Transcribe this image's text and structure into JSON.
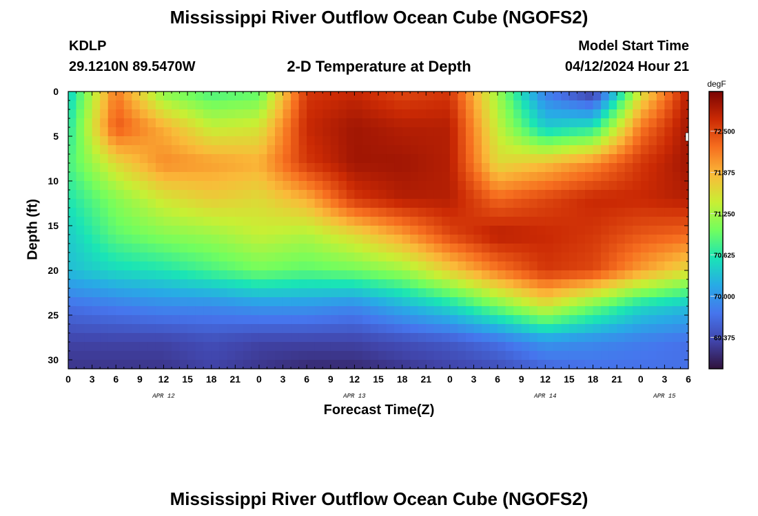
{
  "header": {
    "title": "Mississippi River Outflow Ocean Cube (NGOFS2)",
    "station_id": "KDLP",
    "location": "29.1210N  89.5470W",
    "subtitle": "2-D Temperature at Depth",
    "model_start_label": "Model Start Time",
    "model_start_value": "04/12/2024 Hour 21"
  },
  "footer": {
    "title": "Mississippi River Outflow Ocean Cube (NGOFS2)"
  },
  "chart_data": {
    "type": "heatmap",
    "title": "2-D Temperature at Depth",
    "xlabel": "Forecast Time(Z)",
    "ylabel": "Depth (ft)",
    "x_ticks": [
      "0",
      "3",
      "6",
      "9",
      "12",
      "15",
      "18",
      "21",
      "0",
      "3",
      "6",
      "9",
      "12",
      "15",
      "18",
      "21",
      "0",
      "3",
      "6",
      "9",
      "12",
      "15",
      "18",
      "21",
      "0",
      "3",
      "6"
    ],
    "x_range_hours": [
      0,
      78
    ],
    "date_labels": [
      {
        "text": "APR 12",
        "hour": 12
      },
      {
        "text": "APR 13",
        "hour": 36
      },
      {
        "text": "APR 14",
        "hour": 60
      },
      {
        "text": "APR 15",
        "hour": 75
      }
    ],
    "y_ticks": [
      "0",
      "5",
      "10",
      "15",
      "20",
      "25",
      "30"
    ],
    "y_range": [
      0,
      31
    ],
    "colorbar": {
      "unit": "degF",
      "min": 68.9,
      "max": 73.1,
      "labels": [
        "72.500",
        "71.875",
        "71.250",
        "70.625",
        "70.000",
        "69.375"
      ],
      "label_values": [
        72.5,
        71.875,
        71.25,
        70.625,
        70.0,
        69.375
      ]
    },
    "grid_hours": [
      0,
      6,
      12,
      18,
      24,
      30,
      36,
      42,
      48,
      54,
      60,
      66,
      72,
      78
    ],
    "grid_depths": [
      0,
      4,
      8,
      12,
      16,
      20,
      24,
      28,
      31
    ],
    "values": [
      [
        70.4,
        72.2,
        71.1,
        70.8,
        70.9,
        72.6,
        72.7,
        72.5,
        72.6,
        71.2,
        69.8,
        69.2,
        71.5,
        72.8
      ],
      [
        70.6,
        72.4,
        71.9,
        71.4,
        71.5,
        72.7,
        72.9,
        72.8,
        72.8,
        71.4,
        70.4,
        70.6,
        72.2,
        72.9
      ],
      [
        70.8,
        71.6,
        72.1,
        72.0,
        71.9,
        72.6,
        72.9,
        72.9,
        72.8,
        71.6,
        71.8,
        72.1,
        72.6,
        72.9
      ],
      [
        70.6,
        71.1,
        71.5,
        71.7,
        71.6,
        71.9,
        72.6,
        72.8,
        72.8,
        72.3,
        72.5,
        72.7,
        72.7,
        72.8
      ],
      [
        70.4,
        70.9,
        71.1,
        71.2,
        71.4,
        71.3,
        71.6,
        72.0,
        72.5,
        72.8,
        72.7,
        72.6,
        72.4,
        72.3
      ],
      [
        70.3,
        70.5,
        70.6,
        70.8,
        71.0,
        70.9,
        71.0,
        71.2,
        71.7,
        72.2,
        72.6,
        72.5,
        72.0,
        71.6
      ],
      [
        69.7,
        69.8,
        69.9,
        69.9,
        70.0,
        70.0,
        69.9,
        70.2,
        70.5,
        71.0,
        71.5,
        71.0,
        70.5,
        70.3
      ],
      [
        69.3,
        69.3,
        69.3,
        69.4,
        69.3,
        69.3,
        69.3,
        69.4,
        69.5,
        69.7,
        70.0,
        69.9,
        69.8,
        69.7
      ],
      [
        69.2,
        69.2,
        69.2,
        69.3,
        69.2,
        69.1,
        69.1,
        69.2,
        69.3,
        69.4,
        69.6,
        69.7,
        69.7,
        69.7
      ]
    ]
  }
}
